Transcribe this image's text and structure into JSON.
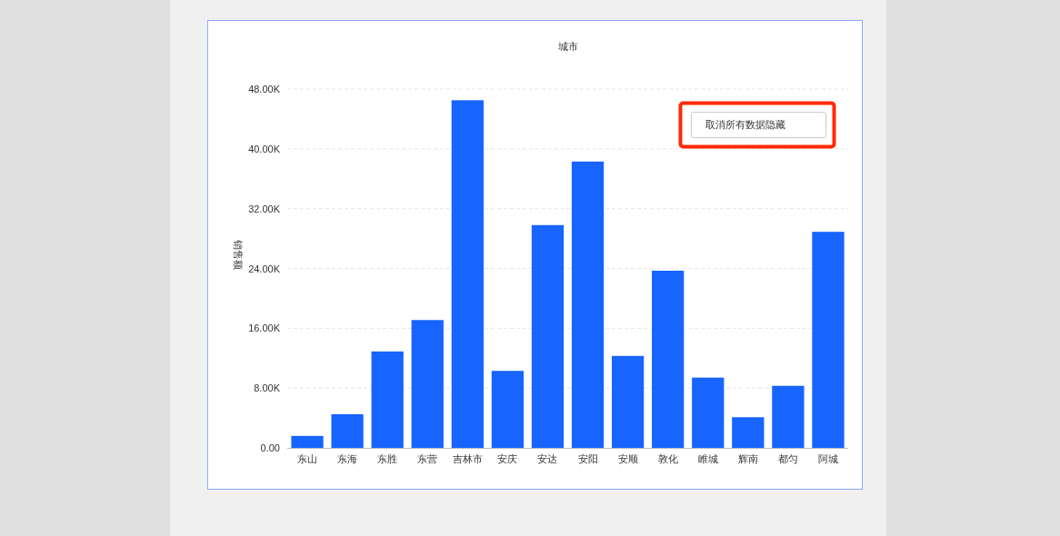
{
  "chart_data": {
    "type": "bar",
    "title": "城市",
    "ylabel": "销售额",
    "categories": [
      "东山",
      "东海",
      "东胜",
      "东营",
      "吉林市",
      "安庆",
      "安达",
      "安阳",
      "安顺",
      "敦化",
      "睢城",
      "辉南",
      "都匀",
      "阿城"
    ],
    "values": [
      1600,
      4500,
      12900,
      17100,
      46500,
      10300,
      29800,
      38300,
      12300,
      23700,
      9400,
      4100,
      8300,
      28900
    ],
    "color": "#1764ff",
    "ylim": [
      0,
      48000
    ],
    "yticks": [
      {
        "value": 0,
        "label": "0.00"
      },
      {
        "value": 8000,
        "label": "8.00K"
      },
      {
        "value": 16000,
        "label": "16.00K"
      },
      {
        "value": 24000,
        "label": "24.00K"
      },
      {
        "value": 32000,
        "label": "32.00K"
      },
      {
        "value": 40000,
        "label": "40.00K"
      },
      {
        "value": 48000,
        "label": "48.00K"
      }
    ],
    "grid": "y",
    "annotations": [
      "取消所有数据隐藏"
    ]
  }
}
